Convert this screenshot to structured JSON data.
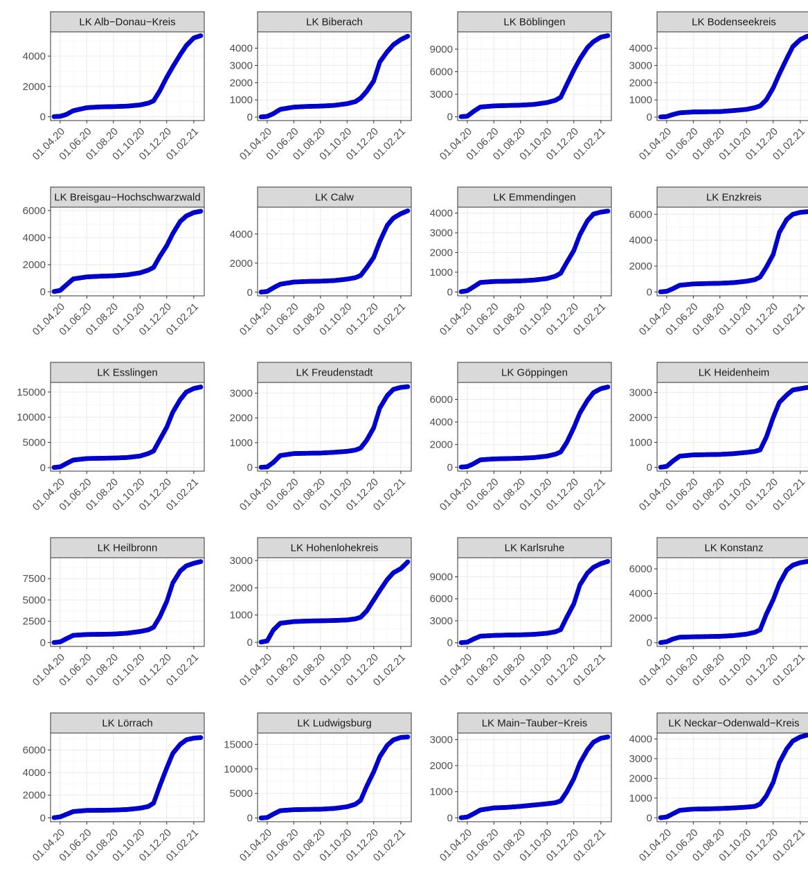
{
  "x_ticks": [
    "01.04.20",
    "01.06.20",
    "01.08.20",
    "01.10.20",
    "01.12.20",
    "01.02.21"
  ],
  "point_color": "#0000CC",
  "strip_fill": "#D9D9D9",
  "grid_major": "#EBEBEB",
  "grid_minor": "#F5F5F5",
  "chart_data": [
    {
      "type": "scatter",
      "title": "LK Alb−Donau−Kreis",
      "x": [
        "18.03.20",
        "01.04.20",
        "15.04.20",
        "01.05.20",
        "01.06.20",
        "01.07.20",
        "01.08.20",
        "01.09.20",
        "01.10.20",
        "20.10.20",
        "01.11.20",
        "15.11.20",
        "01.12.20",
        "15.12.20",
        "01.01.21",
        "15.01.21",
        "01.02.21",
        "17.02.21"
      ],
      "y": [
        10,
        30,
        150,
        400,
        600,
        650,
        670,
        700,
        780,
        900,
        1050,
        1700,
        2600,
        3300,
        4100,
        4700,
        5200,
        5350
      ],
      "ylim": [
        -250,
        5600
      ],
      "yticks": [
        0,
        2000,
        4000
      ]
    },
    {
      "type": "scatter",
      "title": "LK Biberach",
      "x": [
        "18.03.20",
        "01.04.20",
        "15.04.20",
        "01.05.20",
        "01.06.20",
        "01.07.20",
        "01.08.20",
        "01.09.20",
        "01.10.20",
        "20.10.20",
        "01.11.20",
        "15.11.20",
        "01.12.20",
        "15.12.20",
        "01.01.21",
        "15.01.21",
        "01.02.21",
        "17.02.21"
      ],
      "y": [
        10,
        40,
        200,
        450,
        580,
        620,
        640,
        680,
        780,
        900,
        1100,
        1500,
        2100,
        3200,
        3800,
        4200,
        4500,
        4700
      ],
      "ylim": [
        -200,
        4950
      ],
      "yticks": [
        0,
        1000,
        2000,
        3000,
        4000
      ]
    },
    {
      "type": "scatter",
      "title": "LK Böblingen",
      "x": [
        "18.03.20",
        "01.04.20",
        "15.04.20",
        "01.05.20",
        "01.06.20",
        "01.07.20",
        "01.08.20",
        "01.09.20",
        "01.10.20",
        "20.10.20",
        "01.11.20",
        "15.11.20",
        "01.12.20",
        "15.12.20",
        "01.01.21",
        "15.01.21",
        "01.02.21",
        "17.02.21"
      ],
      "y": [
        20,
        80,
        700,
        1300,
        1450,
        1500,
        1550,
        1650,
        1900,
        2200,
        2600,
        4300,
        6200,
        7700,
        9200,
        10000,
        10600,
        10800
      ],
      "ylim": [
        -500,
        11300
      ],
      "yticks": [
        0,
        3000,
        6000,
        9000
      ]
    },
    {
      "type": "scatter",
      "title": "LK Bodenseekreis",
      "x": [
        "18.03.20",
        "01.04.20",
        "15.04.20",
        "01.05.20",
        "01.06.20",
        "01.07.20",
        "01.08.20",
        "01.09.20",
        "01.10.20",
        "20.10.20",
        "01.11.20",
        "15.11.20",
        "01.12.20",
        "15.12.20",
        "01.01.21",
        "15.01.21",
        "01.02.21",
        "17.02.21"
      ],
      "y": [
        10,
        30,
        150,
        250,
        300,
        310,
        320,
        380,
        450,
        550,
        650,
        1000,
        1700,
        2500,
        3400,
        4100,
        4500,
        4700
      ],
      "ylim": [
        -200,
        4950
      ],
      "yticks": [
        0,
        1000,
        2000,
        3000,
        4000
      ]
    },
    {
      "type": "scatter",
      "title": "LK Breisgau−Hochschwarzwald",
      "x": [
        "18.03.20",
        "01.04.20",
        "15.04.20",
        "01.05.20",
        "01.06.20",
        "01.07.20",
        "01.08.20",
        "01.09.20",
        "01.10.20",
        "20.10.20",
        "01.11.20",
        "15.11.20",
        "01.12.20",
        "15.12.20",
        "01.01.21",
        "15.01.21",
        "01.02.21",
        "17.02.21"
      ],
      "y": [
        20,
        100,
        500,
        950,
        1100,
        1150,
        1180,
        1250,
        1400,
        1600,
        1800,
        2600,
        3400,
        4300,
        5200,
        5600,
        5850,
        5950
      ],
      "ylim": [
        -300,
        6250
      ],
      "yticks": [
        0,
        2000,
        4000,
        6000
      ]
    },
    {
      "type": "scatter",
      "title": "LK Calw",
      "x": [
        "18.03.20",
        "01.04.20",
        "15.04.20",
        "01.05.20",
        "01.06.20",
        "01.07.20",
        "01.08.20",
        "01.09.20",
        "01.10.20",
        "20.10.20",
        "01.11.20",
        "15.11.20",
        "01.12.20",
        "15.12.20",
        "01.01.21",
        "15.01.21",
        "01.02.21",
        "17.02.21"
      ],
      "y": [
        10,
        50,
        300,
        550,
        700,
        740,
        760,
        800,
        900,
        1000,
        1150,
        1700,
        2400,
        3500,
        4600,
        5100,
        5400,
        5600
      ],
      "ylim": [
        -250,
        5850
      ],
      "yticks": [
        0,
        2000,
        4000
      ]
    },
    {
      "type": "scatter",
      "title": "LK Emmendingen",
      "x": [
        "18.03.20",
        "01.04.20",
        "15.04.20",
        "01.05.20",
        "01.06.20",
        "01.07.20",
        "01.08.20",
        "01.09.20",
        "01.10.20",
        "20.10.20",
        "01.11.20",
        "15.11.20",
        "01.12.20",
        "15.12.20",
        "01.01.21",
        "15.01.21",
        "01.02.21",
        "17.02.21"
      ],
      "y": [
        10,
        60,
        250,
        480,
        530,
        540,
        560,
        600,
        680,
        800,
        950,
        1500,
        2100,
        2900,
        3600,
        3950,
        4050,
        4100
      ],
      "ylim": [
        -200,
        4300
      ],
      "yticks": [
        0,
        1000,
        2000,
        3000,
        4000
      ]
    },
    {
      "type": "scatter",
      "title": "LK Enzkreis",
      "x": [
        "18.03.20",
        "01.04.20",
        "15.04.20",
        "01.05.20",
        "01.06.20",
        "01.07.20",
        "01.08.20",
        "01.09.20",
        "01.10.20",
        "20.10.20",
        "01.11.20",
        "15.11.20",
        "01.12.20",
        "15.12.20",
        "01.01.21",
        "15.01.21",
        "01.02.21",
        "17.02.21"
      ],
      "y": [
        10,
        50,
        250,
        520,
        620,
        650,
        670,
        720,
        830,
        950,
        1150,
        1900,
        2900,
        4600,
        5600,
        6000,
        6150,
        6200
      ],
      "ylim": [
        -300,
        6550
      ],
      "yticks": [
        0,
        2000,
        4000,
        6000
      ]
    },
    {
      "type": "scatter",
      "title": "LK Esslingen",
      "x": [
        "18.03.20",
        "01.04.20",
        "15.04.20",
        "01.05.20",
        "01.06.20",
        "01.07.20",
        "01.08.20",
        "01.09.20",
        "01.10.20",
        "20.10.20",
        "01.11.20",
        "15.11.20",
        "01.12.20",
        "15.12.20",
        "01.01.21",
        "15.01.21",
        "01.02.21",
        "17.02.21"
      ],
      "y": [
        30,
        150,
        800,
        1500,
        1800,
        1850,
        1900,
        2000,
        2300,
        2800,
        3300,
        5500,
        8000,
        11000,
        13500,
        15000,
        15700,
        16000
      ],
      "ylim": [
        -700,
        16900
      ],
      "yticks": [
        0,
        5000,
        10000,
        15000
      ]
    },
    {
      "type": "scatter",
      "title": "LK Freudenstadt",
      "x": [
        "18.03.20",
        "01.04.20",
        "15.04.20",
        "01.05.20",
        "01.06.20",
        "01.07.20",
        "01.08.20",
        "01.09.20",
        "01.10.20",
        "20.10.20",
        "01.11.20",
        "15.11.20",
        "01.12.20",
        "15.12.20",
        "01.01.21",
        "15.01.21",
        "01.02.21",
        "17.02.21"
      ],
      "y": [
        5,
        20,
        200,
        480,
        560,
        570,
        580,
        610,
        650,
        700,
        780,
        1100,
        1600,
        2400,
        2900,
        3150,
        3230,
        3260
      ],
      "ylim": [
        -150,
        3430
      ],
      "yticks": [
        0,
        1000,
        2000,
        3000
      ]
    },
    {
      "type": "scatter",
      "title": "LK Göppingen",
      "x": [
        "18.03.20",
        "01.04.20",
        "15.04.20",
        "01.05.20",
        "01.06.20",
        "01.07.20",
        "01.08.20",
        "01.09.20",
        "01.10.20",
        "20.10.20",
        "01.11.20",
        "15.11.20",
        "01.12.20",
        "15.12.20",
        "01.01.21",
        "15.01.21",
        "01.02.21",
        "17.02.21"
      ],
      "y": [
        10,
        50,
        300,
        650,
        730,
        760,
        790,
        850,
        980,
        1150,
        1350,
        2200,
        3500,
        4800,
        5900,
        6600,
        6950,
        7100
      ],
      "ylim": [
        -350,
        7500
      ],
      "yticks": [
        0,
        2000,
        4000,
        6000
      ]
    },
    {
      "type": "scatter",
      "title": "LK Heidenheim",
      "x": [
        "18.03.20",
        "01.04.20",
        "15.04.20",
        "01.05.20",
        "01.06.20",
        "01.07.20",
        "01.08.20",
        "01.09.20",
        "01.10.20",
        "20.10.20",
        "01.11.20",
        "15.11.20",
        "01.12.20",
        "15.12.20",
        "01.01.21",
        "15.01.21",
        "01.02.21",
        "17.02.21"
      ],
      "y": [
        5,
        40,
        250,
        450,
        500,
        510,
        520,
        550,
        600,
        640,
        700,
        1200,
        2000,
        2600,
        2900,
        3100,
        3150,
        3200
      ],
      "ylim": [
        -150,
        3400
      ],
      "yticks": [
        0,
        1000,
        2000,
        3000
      ]
    },
    {
      "type": "scatter",
      "title": "LK Heilbronn",
      "x": [
        "18.03.20",
        "01.04.20",
        "15.04.20",
        "01.05.20",
        "01.06.20",
        "01.07.20",
        "01.08.20",
        "01.09.20",
        "01.10.20",
        "20.10.20",
        "01.11.20",
        "15.11.20",
        "01.12.20",
        "15.12.20",
        "01.01.21",
        "15.01.21",
        "01.02.21",
        "17.02.21"
      ],
      "y": [
        10,
        80,
        450,
        850,
        950,
        970,
        1000,
        1100,
        1300,
        1500,
        1800,
        3000,
        4800,
        7000,
        8400,
        9000,
        9300,
        9500
      ],
      "ylim": [
        -450,
        9950
      ],
      "yticks": [
        0,
        2500,
        5000,
        7500
      ]
    },
    {
      "type": "scatter",
      "title": "LK Hohenlohekreis",
      "x": [
        "18.03.20",
        "01.04.20",
        "15.04.20",
        "01.05.20",
        "01.06.20",
        "01.07.20",
        "01.08.20",
        "01.09.20",
        "01.10.20",
        "20.10.20",
        "01.11.20",
        "15.11.20",
        "01.12.20",
        "15.12.20",
        "01.01.21",
        "15.01.21",
        "01.02.21",
        "17.02.21"
      ],
      "y": [
        10,
        50,
        450,
        700,
        760,
        780,
        790,
        800,
        820,
        860,
        920,
        1150,
        1550,
        1900,
        2300,
        2550,
        2700,
        2950
      ],
      "ylim": [
        -150,
        3100
      ],
      "yticks": [
        0,
        1000,
        2000,
        3000
      ]
    },
    {
      "type": "scatter",
      "title": "LK Karlsruhe",
      "x": [
        "18.03.20",
        "01.04.20",
        "15.04.20",
        "01.05.20",
        "01.06.20",
        "01.07.20",
        "01.08.20",
        "01.09.20",
        "01.10.20",
        "20.10.20",
        "01.11.20",
        "15.11.20",
        "01.12.20",
        "15.12.20",
        "01.01.21",
        "15.01.21",
        "01.02.21",
        "17.02.21"
      ],
      "y": [
        20,
        80,
        500,
        900,
        1000,
        1050,
        1080,
        1150,
        1300,
        1500,
        1800,
        3500,
        5300,
        7900,
        9500,
        10300,
        10800,
        11100
      ],
      "ylim": [
        -500,
        11600
      ],
      "yticks": [
        0,
        3000,
        6000,
        9000
      ]
    },
    {
      "type": "scatter",
      "title": "LK Konstanz",
      "x": [
        "18.03.20",
        "01.04.20",
        "15.04.20",
        "01.05.20",
        "01.06.20",
        "01.07.20",
        "01.08.20",
        "01.09.20",
        "01.10.20",
        "20.10.20",
        "01.11.20",
        "15.11.20",
        "01.12.20",
        "15.12.20",
        "01.01.21",
        "15.01.21",
        "01.02.21",
        "17.02.21"
      ],
      "y": [
        10,
        80,
        300,
        450,
        480,
        500,
        520,
        580,
        700,
        850,
        1050,
        2300,
        3500,
        4800,
        5900,
        6300,
        6500,
        6600
      ],
      "ylim": [
        -300,
        6900
      ],
      "yticks": [
        0,
        2000,
        4000,
        6000
      ]
    },
    {
      "type": "scatter",
      "title": "LK Lörrach",
      "x": [
        "18.03.20",
        "01.04.20",
        "15.04.20",
        "01.05.20",
        "01.06.20",
        "01.07.20",
        "01.08.20",
        "01.09.20",
        "01.10.20",
        "20.10.20",
        "01.11.20",
        "15.11.20",
        "01.12.20",
        "15.12.20",
        "01.01.21",
        "15.01.21",
        "01.02.21",
        "17.02.21"
      ],
      "y": [
        10,
        80,
        300,
        550,
        650,
        660,
        680,
        730,
        850,
        1000,
        1300,
        2800,
        4400,
        5700,
        6500,
        6900,
        7050,
        7100
      ],
      "ylim": [
        -350,
        7500
      ],
      "yticks": [
        0,
        2000,
        4000,
        6000
      ]
    },
    {
      "type": "scatter",
      "title": "LK Ludwigsburg",
      "x": [
        "18.03.20",
        "01.04.20",
        "15.04.20",
        "01.05.20",
        "01.06.20",
        "01.07.20",
        "01.08.20",
        "01.09.20",
        "01.10.20",
        "20.10.20",
        "01.11.20",
        "15.11.20",
        "01.12.20",
        "15.12.20",
        "01.01.21",
        "15.01.21",
        "01.02.21",
        "17.02.21"
      ],
      "y": [
        20,
        100,
        800,
        1500,
        1700,
        1750,
        1800,
        1950,
        2300,
        2800,
        3600,
        6500,
        9400,
        12500,
        14800,
        15900,
        16400,
        16500
      ],
      "ylim": [
        -750,
        17300
      ],
      "yticks": [
        0,
        5000,
        10000,
        15000
      ]
    },
    {
      "type": "scatter",
      "title": "LK Main−Tauber−Kreis",
      "x": [
        "18.03.20",
        "01.04.20",
        "15.04.20",
        "01.05.20",
        "01.06.20",
        "01.07.20",
        "01.08.20",
        "01.09.20",
        "01.10.20",
        "20.10.20",
        "01.11.20",
        "15.11.20",
        "01.12.20",
        "15.12.20",
        "01.01.21",
        "15.01.21",
        "01.02.21",
        "17.02.21"
      ],
      "y": [
        5,
        30,
        150,
        300,
        380,
        400,
        440,
        490,
        540,
        580,
        650,
        1000,
        1500,
        2100,
        2600,
        2900,
        3050,
        3100
      ],
      "ylim": [
        -150,
        3250
      ],
      "yticks": [
        0,
        1000,
        2000,
        3000
      ]
    },
    {
      "type": "scatter",
      "title": "LK Neckar−Odenwald−Kreis",
      "x": [
        "18.03.20",
        "01.04.20",
        "15.04.20",
        "01.05.20",
        "01.06.20",
        "01.07.20",
        "01.08.20",
        "01.09.20",
        "01.10.20",
        "20.10.20",
        "01.11.20",
        "15.11.20",
        "01.12.20",
        "15.12.20",
        "01.01.21",
        "15.01.21",
        "01.02.21",
        "17.02.21"
      ],
      "y": [
        5,
        40,
        200,
        380,
        440,
        450,
        470,
        500,
        540,
        580,
        700,
        1100,
        1800,
        2800,
        3500,
        3900,
        4100,
        4200
      ],
      "ylim": [
        -200,
        4300
      ],
      "yticks": [
        0,
        1000,
        2000,
        3000,
        4000
      ]
    }
  ]
}
